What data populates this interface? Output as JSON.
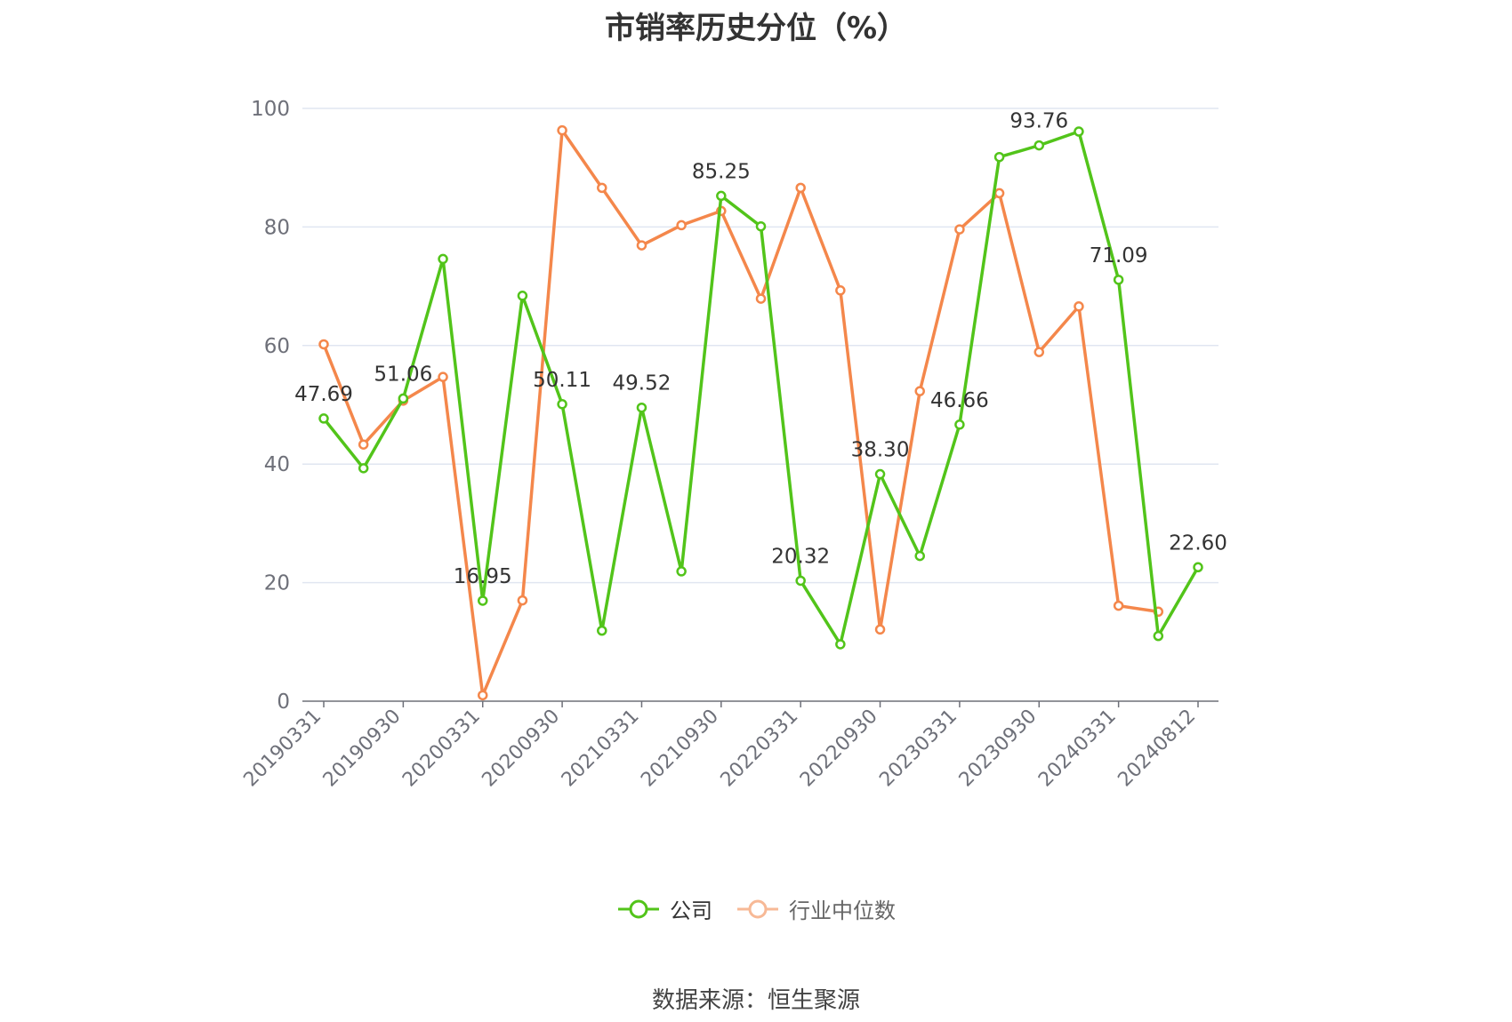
{
  "chart_data": {
    "type": "line",
    "title": "市销率历史分位（%）",
    "x": [
      "20190331",
      "20190630",
      "20190930",
      "20191231",
      "20200331",
      "20200630",
      "20200930",
      "20201231",
      "20210331",
      "20210630",
      "20210930",
      "20211231",
      "20220331",
      "20220630",
      "20220930",
      "20221231",
      "20230331",
      "20230630",
      "20230930",
      "20231231",
      "20240331",
      "20240630",
      "20240812"
    ],
    "x_tick_labels": [
      "20190331",
      "20190930",
      "20200331",
      "20200930",
      "20210331",
      "20210930",
      "20220331",
      "20220930",
      "20230331",
      "20230930",
      "20240331",
      "20240812"
    ],
    "ylim": [
      0,
      100
    ],
    "y_ticks": [
      0,
      20,
      40,
      60,
      80,
      100
    ],
    "grid": true,
    "legend_position": "bottom",
    "series": [
      {
        "name": "公司",
        "color": "#52c41a",
        "values": [
          47.69,
          39.3,
          51.06,
          74.6,
          16.95,
          68.4,
          50.11,
          11.9,
          49.52,
          21.9,
          85.25,
          80.1,
          20.32,
          9.6,
          38.3,
          24.5,
          46.66,
          91.8,
          93.76,
          96.1,
          71.09,
          11.0,
          22.6
        ],
        "labels": [
          "47.69",
          "",
          "51.06",
          "",
          "16.95",
          "",
          "50.11",
          "",
          "49.52",
          "",
          "85.25",
          "",
          "20.32",
          "",
          "38.30",
          "",
          "46.66",
          "",
          "93.76",
          "",
          "71.09",
          "",
          "22.60"
        ]
      },
      {
        "name": "行业中位数",
        "color": "#f4874b",
        "values": [
          60.2,
          43.3,
          50.7,
          54.7,
          1.0,
          17.0,
          96.3,
          86.6,
          76.9,
          80.3,
          82.7,
          67.9,
          86.6,
          69.3,
          12.1,
          52.3,
          79.6,
          85.7,
          58.9,
          66.6,
          16.1,
          15.1,
          null
        ]
      }
    ]
  },
  "source_text": "数据来源：恒生聚源"
}
